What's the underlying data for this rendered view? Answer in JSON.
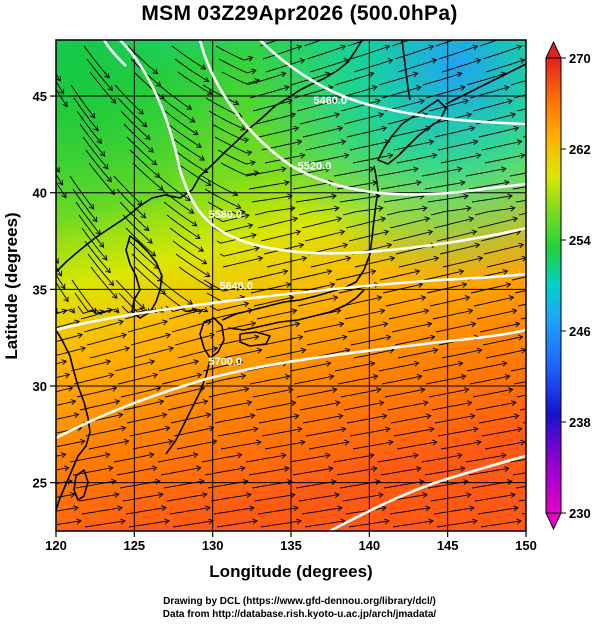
{
  "title": "MSM 03Z29Apr2026 (500.0hPa)",
  "x_axis": {
    "label": "Longitude (degrees)",
    "ticks": [
      "120",
      "125",
      "130",
      "135",
      "140",
      "145",
      "150"
    ]
  },
  "y_axis": {
    "label": "Latitude  (degrees)",
    "ticks": [
      "25",
      "30",
      "35",
      "40",
      "45"
    ]
  },
  "colorbar": {
    "ticks": [
      "230",
      "238",
      "246",
      "254",
      "262",
      "270"
    ],
    "min": 230,
    "max": 270,
    "colors": [
      "#e600c8",
      "#1414d2",
      "#1ea0ff",
      "#00d2c8",
      "#1ed23c",
      "#78dc1e",
      "#dce600",
      "#ffb400",
      "#ff7800",
      "#ff3c14",
      "#e61e1e"
    ]
  },
  "contour_labels": [
    {
      "text": "5460.0",
      "lon": 137.5,
      "lat": 44.6
    },
    {
      "text": "5520.0",
      "lon": 136.5,
      "lat": 41.2
    },
    {
      "text": "5580.0",
      "lon": 130.8,
      "lat": 38.7
    },
    {
      "text": "5640.0",
      "lon": 131.5,
      "lat": 35.0
    },
    {
      "text": "5700.0",
      "lon": 130.8,
      "lat": 31.1
    }
  ],
  "map": {
    "lon_range": [
      120,
      150
    ],
    "lat_range": [
      22.5,
      47.9
    ],
    "gridlines_lon": [
      120,
      125,
      130,
      135,
      140,
      145,
      150
    ],
    "gridlines_lat": [
      25,
      30,
      35,
      40,
      45
    ],
    "field": "temperature (K) with geopotential height contours and wind streamlines",
    "level": "500.0hPa"
  },
  "credits": {
    "line1": "Drawing by DCL (https://www.gfd-dennou.org/library/dcl/)",
    "line2": "Data from http://database.rish.kyoto-u.ac.jp/arch/jmadata/"
  }
}
